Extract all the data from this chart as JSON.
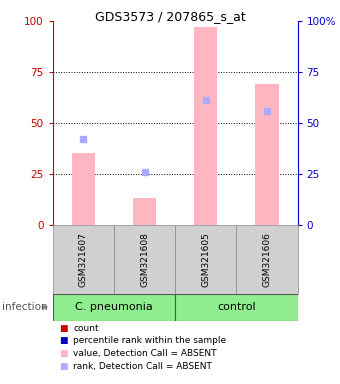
{
  "title": "GDS3573 / 207865_s_at",
  "samples": [
    "GSM321607",
    "GSM321608",
    "GSM321605",
    "GSM321606"
  ],
  "bar_pink_values": [
    35,
    13,
    97,
    69
  ],
  "dot_lightblue_values": [
    42,
    26,
    61,
    56
  ],
  "ylim": [
    0,
    100
  ],
  "yticks": [
    0,
    25,
    50,
    75,
    100
  ],
  "left_axis_color": "#cc0000",
  "right_axis_color": "#0000cc",
  "bar_color": "#ffb6c1",
  "dot_red_color": "#cc0000",
  "dot_blue_color": "#0000bb",
  "dot_lightblue_color": "#aaaaff",
  "group_label": "infection",
  "group_names": [
    "C. pneumonia",
    "control"
  ],
  "group_colors": [
    "#90ee90",
    "#90ee90"
  ],
  "grid_yticks": [
    25,
    50,
    75
  ],
  "background_color": "#ffffff",
  "legend_labels": [
    "count",
    "percentile rank within the sample",
    "value, Detection Call = ABSENT",
    "rank, Detection Call = ABSENT"
  ],
  "legend_colors": [
    "#cc0000",
    "#0000bb",
    "#ffb6c1",
    "#aaaaff"
  ],
  "title_fontsize": 9,
  "axis_fontsize": 7.5,
  "sample_fontsize": 6.5,
  "group_fontsize": 8,
  "legend_fontsize": 6.5
}
